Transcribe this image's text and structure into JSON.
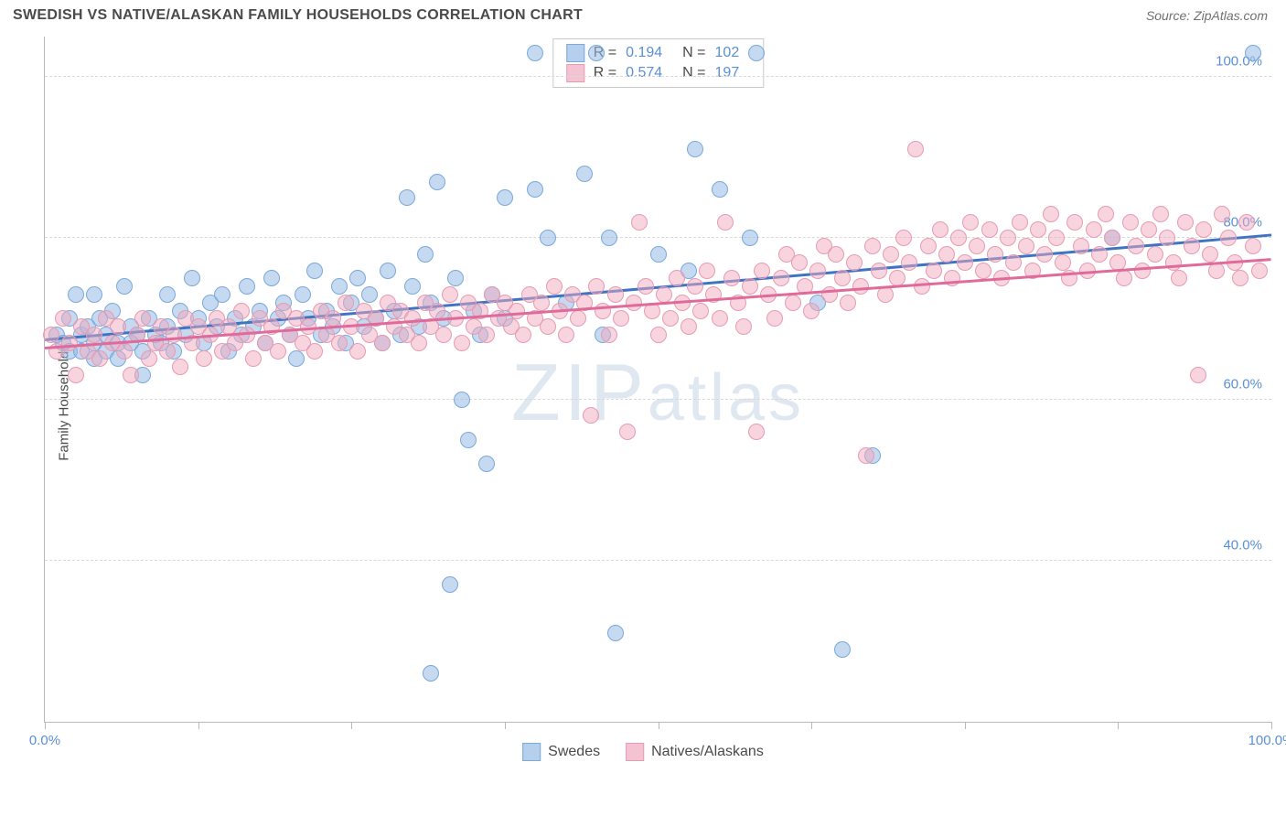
{
  "header": {
    "title": "SWEDISH VS NATIVE/ALASKAN FAMILY HOUSEHOLDS CORRELATION CHART",
    "source": "Source: ZipAtlas.com"
  },
  "chart": {
    "type": "scatter",
    "ylabel": "Family Households",
    "watermark": "ZIPatlas",
    "xlim": [
      0,
      100
    ],
    "ylim": [
      20,
      105
    ],
    "x_ticks": [
      0,
      12.5,
      25,
      37.5,
      50,
      62.5,
      75,
      87.5,
      100
    ],
    "x_tick_labels": {
      "0": "0.0%",
      "100": "100.0%"
    },
    "y_gridlines": [
      40,
      60,
      80,
      100
    ],
    "y_tick_labels": {
      "40": "40.0%",
      "60": "60.0%",
      "80": "80.0%",
      "100": "100.0%"
    },
    "background_color": "#ffffff",
    "grid_color": "#d9d9d9",
    "axis_color": "#b8b8b8",
    "tick_label_color": "#5a8fd6",
    "series": [
      {
        "name": "Swedes",
        "color_fill": "rgba(150,186,228,0.55)",
        "color_stroke": "#7aa9db",
        "trend_color": "#3f74c3",
        "R": "0.194",
        "N": "102",
        "trend": {
          "x1": 0,
          "y1": 67.5,
          "x2": 100,
          "y2": 80.5
        },
        "points": [
          [
            1,
            68
          ],
          [
            1.5,
            67
          ],
          [
            2,
            70
          ],
          [
            2,
            66
          ],
          [
            2.5,
            73
          ],
          [
            3,
            68
          ],
          [
            3,
            66
          ],
          [
            3.5,
            69
          ],
          [
            4,
            73
          ],
          [
            4,
            67
          ],
          [
            4,
            65
          ],
          [
            4.5,
            70
          ],
          [
            5,
            68
          ],
          [
            5,
            66
          ],
          [
            5.5,
            71
          ],
          [
            6,
            67
          ],
          [
            6,
            65
          ],
          [
            6.5,
            74
          ],
          [
            7,
            69
          ],
          [
            7,
            67
          ],
          [
            7.5,
            68
          ],
          [
            8,
            66
          ],
          [
            8,
            63
          ],
          [
            8.5,
            70
          ],
          [
            9,
            68
          ],
          [
            9.5,
            67
          ],
          [
            10,
            73
          ],
          [
            10,
            69
          ],
          [
            10.5,
            66
          ],
          [
            11,
            71
          ],
          [
            11.5,
            68
          ],
          [
            12,
            75
          ],
          [
            12.5,
            70
          ],
          [
            13,
            67
          ],
          [
            13.5,
            72
          ],
          [
            14,
            69
          ],
          [
            14.5,
            73
          ],
          [
            15,
            66
          ],
          [
            15.5,
            70
          ],
          [
            16,
            68
          ],
          [
            16.5,
            74
          ],
          [
            17,
            69
          ],
          [
            17.5,
            71
          ],
          [
            18,
            67
          ],
          [
            18.5,
            75
          ],
          [
            19,
            70
          ],
          [
            19.5,
            72
          ],
          [
            20,
            68
          ],
          [
            20.5,
            65
          ],
          [
            21,
            73
          ],
          [
            21.5,
            70
          ],
          [
            22,
            76
          ],
          [
            22.5,
            68
          ],
          [
            23,
            71
          ],
          [
            23.5,
            69
          ],
          [
            24,
            74
          ],
          [
            24.5,
            67
          ],
          [
            25,
            72
          ],
          [
            25.5,
            75
          ],
          [
            26,
            69
          ],
          [
            26.5,
            73
          ],
          [
            27,
            70
          ],
          [
            27.5,
            67
          ],
          [
            28,
            76
          ],
          [
            28.5,
            71
          ],
          [
            29,
            68
          ],
          [
            29.5,
            85
          ],
          [
            30,
            74
          ],
          [
            30.5,
            69
          ],
          [
            31,
            78
          ],
          [
            31.5,
            26
          ],
          [
            31.5,
            72
          ],
          [
            32,
            87
          ],
          [
            32.5,
            70
          ],
          [
            33,
            37
          ],
          [
            33.5,
            75
          ],
          [
            34,
            60
          ],
          [
            34.5,
            55
          ],
          [
            35,
            71
          ],
          [
            35.5,
            68
          ],
          [
            36,
            52
          ],
          [
            36.5,
            73
          ],
          [
            37.5,
            70
          ],
          [
            37.5,
            85
          ],
          [
            40,
            103
          ],
          [
            40,
            86
          ],
          [
            41,
            80
          ],
          [
            42.5,
            72
          ],
          [
            44,
            88
          ],
          [
            45,
            103
          ],
          [
            45.5,
            68
          ],
          [
            46,
            80
          ],
          [
            46.5,
            31
          ],
          [
            50,
            78
          ],
          [
            52.5,
            76
          ],
          [
            53,
            91
          ],
          [
            55,
            86
          ],
          [
            57.5,
            80
          ],
          [
            58,
            103
          ],
          [
            63,
            72
          ],
          [
            65,
            29
          ],
          [
            67.5,
            53
          ],
          [
            87,
            80
          ],
          [
            98.5,
            103
          ]
        ]
      },
      {
        "name": "Natives/Alaskans",
        "color_fill": "rgba(240,170,190,0.5)",
        "color_stroke": "#e79bb3",
        "trend_color": "#e06a9a",
        "R": "0.574",
        "N": "197",
        "trend": {
          "x1": 0,
          "y1": 66.5,
          "x2": 100,
          "y2": 77.5
        },
        "points": [
          [
            0.5,
            68
          ],
          [
            1,
            66
          ],
          [
            1.5,
            70
          ],
          [
            2,
            67
          ],
          [
            2.5,
            63
          ],
          [
            3,
            69
          ],
          [
            3.5,
            66
          ],
          [
            4,
            68
          ],
          [
            4.5,
            65
          ],
          [
            5,
            70
          ],
          [
            5.5,
            67
          ],
          [
            6,
            69
          ],
          [
            6.5,
            66
          ],
          [
            7,
            63
          ],
          [
            7.5,
            68
          ],
          [
            8,
            70
          ],
          [
            8.5,
            65
          ],
          [
            9,
            67
          ],
          [
            9.5,
            69
          ],
          [
            10,
            66
          ],
          [
            10.5,
            68
          ],
          [
            11,
            64
          ],
          [
            11.5,
            70
          ],
          [
            12,
            67
          ],
          [
            12.5,
            69
          ],
          [
            13,
            65
          ],
          [
            13.5,
            68
          ],
          [
            14,
            70
          ],
          [
            14.5,
            66
          ],
          [
            15,
            69
          ],
          [
            15.5,
            67
          ],
          [
            16,
            71
          ],
          [
            16.5,
            68
          ],
          [
            17,
            65
          ],
          [
            17.5,
            70
          ],
          [
            18,
            67
          ],
          [
            18.5,
            69
          ],
          [
            19,
            66
          ],
          [
            19.5,
            71
          ],
          [
            20,
            68
          ],
          [
            20.5,
            70
          ],
          [
            21,
            67
          ],
          [
            21.5,
            69
          ],
          [
            22,
            66
          ],
          [
            22.5,
            71
          ],
          [
            23,
            68
          ],
          [
            23.5,
            70
          ],
          [
            24,
            67
          ],
          [
            24.5,
            72
          ],
          [
            25,
            69
          ],
          [
            25.5,
            66
          ],
          [
            26,
            71
          ],
          [
            26.5,
            68
          ],
          [
            27,
            70
          ],
          [
            27.5,
            67
          ],
          [
            28,
            72
          ],
          [
            28.5,
            69
          ],
          [
            29,
            71
          ],
          [
            29.5,
            68
          ],
          [
            30,
            70
          ],
          [
            30.5,
            67
          ],
          [
            31,
            72
          ],
          [
            31.5,
            69
          ],
          [
            32,
            71
          ],
          [
            32.5,
            68
          ],
          [
            33,
            73
          ],
          [
            33.5,
            70
          ],
          [
            34,
            67
          ],
          [
            34.5,
            72
          ],
          [
            35,
            69
          ],
          [
            35.5,
            71
          ],
          [
            36,
            68
          ],
          [
            36.5,
            73
          ],
          [
            37,
            70
          ],
          [
            37.5,
            72
          ],
          [
            38,
            69
          ],
          [
            38.5,
            71
          ],
          [
            39,
            68
          ],
          [
            39.5,
            73
          ],
          [
            40,
            70
          ],
          [
            40.5,
            72
          ],
          [
            41,
            69
          ],
          [
            41.5,
            74
          ],
          [
            42,
            71
          ],
          [
            42.5,
            68
          ],
          [
            43,
            73
          ],
          [
            43.5,
            70
          ],
          [
            44,
            72
          ],
          [
            44.5,
            58
          ],
          [
            45,
            74
          ],
          [
            45.5,
            71
          ],
          [
            46,
            68
          ],
          [
            46.5,
            73
          ],
          [
            47,
            70
          ],
          [
            47.5,
            56
          ],
          [
            48,
            72
          ],
          [
            48.5,
            82
          ],
          [
            49,
            74
          ],
          [
            49.5,
            71
          ],
          [
            50,
            68
          ],
          [
            50.5,
            73
          ],
          [
            51,
            70
          ],
          [
            51.5,
            75
          ],
          [
            52,
            72
          ],
          [
            52.5,
            69
          ],
          [
            53,
            74
          ],
          [
            53.5,
            71
          ],
          [
            54,
            76
          ],
          [
            54.5,
            73
          ],
          [
            55,
            70
          ],
          [
            55.5,
            82
          ],
          [
            56,
            75
          ],
          [
            56.5,
            72
          ],
          [
            57,
            69
          ],
          [
            57.5,
            74
          ],
          [
            58,
            56
          ],
          [
            58.5,
            76
          ],
          [
            59,
            73
          ],
          [
            59.5,
            70
          ],
          [
            60,
            75
          ],
          [
            60.5,
            78
          ],
          [
            61,
            72
          ],
          [
            61.5,
            77
          ],
          [
            62,
            74
          ],
          [
            62.5,
            71
          ],
          [
            63,
            76
          ],
          [
            63.5,
            79
          ],
          [
            64,
            73
          ],
          [
            64.5,
            78
          ],
          [
            65,
            75
          ],
          [
            65.5,
            72
          ],
          [
            66,
            77
          ],
          [
            66.5,
            74
          ],
          [
            67,
            53
          ],
          [
            67.5,
            79
          ],
          [
            68,
            76
          ],
          [
            68.5,
            73
          ],
          [
            69,
            78
          ],
          [
            69.5,
            75
          ],
          [
            70,
            80
          ],
          [
            70.5,
            77
          ],
          [
            71,
            91
          ],
          [
            71.5,
            74
          ],
          [
            72,
            79
          ],
          [
            72.5,
            76
          ],
          [
            73,
            81
          ],
          [
            73.5,
            78
          ],
          [
            74,
            75
          ],
          [
            74.5,
            80
          ],
          [
            75,
            77
          ],
          [
            75.5,
            82
          ],
          [
            76,
            79
          ],
          [
            76.5,
            76
          ],
          [
            77,
            81
          ],
          [
            77.5,
            78
          ],
          [
            78,
            75
          ],
          [
            78.5,
            80
          ],
          [
            79,
            77
          ],
          [
            79.5,
            82
          ],
          [
            80,
            79
          ],
          [
            80.5,
            76
          ],
          [
            81,
            81
          ],
          [
            81.5,
            78
          ],
          [
            82,
            83
          ],
          [
            82.5,
            80
          ],
          [
            83,
            77
          ],
          [
            83.5,
            75
          ],
          [
            84,
            82
          ],
          [
            84.5,
            79
          ],
          [
            85,
            76
          ],
          [
            85.5,
            81
          ],
          [
            86,
            78
          ],
          [
            86.5,
            83
          ],
          [
            87,
            80
          ],
          [
            87.5,
            77
          ],
          [
            88,
            75
          ],
          [
            88.5,
            82
          ],
          [
            89,
            79
          ],
          [
            89.5,
            76
          ],
          [
            90,
            81
          ],
          [
            90.5,
            78
          ],
          [
            91,
            83
          ],
          [
            91.5,
            80
          ],
          [
            92,
            77
          ],
          [
            92.5,
            75
          ],
          [
            93,
            82
          ],
          [
            93.5,
            79
          ],
          [
            94,
            63
          ],
          [
            94.5,
            81
          ],
          [
            95,
            78
          ],
          [
            95.5,
            76
          ],
          [
            96,
            83
          ],
          [
            96.5,
            80
          ],
          [
            97,
            77
          ],
          [
            97.5,
            75
          ],
          [
            98,
            82
          ],
          [
            98.5,
            79
          ],
          [
            99,
            76
          ]
        ]
      }
    ],
    "legend_bottom": [
      "Swedes",
      "Natives/Alaskans"
    ]
  }
}
